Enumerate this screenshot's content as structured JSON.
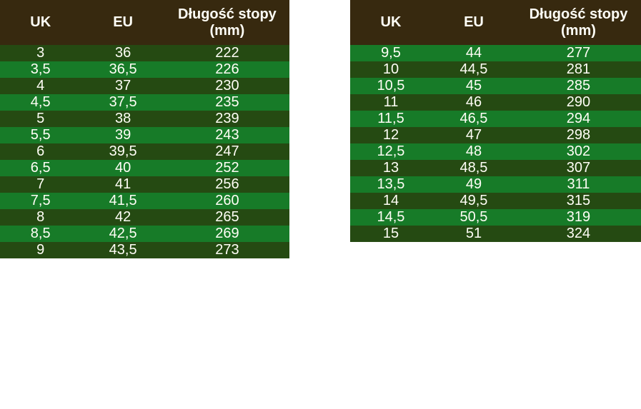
{
  "header": {
    "uk": "UK",
    "eu": "EU",
    "length_line1": "Długość stopy",
    "length_line2": "(mm)"
  },
  "colors": {
    "header_brown": "#37290f",
    "row_dark_green": "#254a12",
    "row_light_green": "#177b28",
    "text": "#fffef6"
  },
  "tables": [
    {
      "start_shade": "dark",
      "rows": [
        [
          "3",
          "36",
          "222"
        ],
        [
          "3,5",
          "36,5",
          "226"
        ],
        [
          "4",
          "37",
          "230"
        ],
        [
          "4,5",
          "37,5",
          "235"
        ],
        [
          "5",
          "38",
          "239"
        ],
        [
          "5,5",
          "39",
          "243"
        ],
        [
          "6",
          "39,5",
          "247"
        ],
        [
          "6,5",
          "40",
          "252"
        ],
        [
          "7",
          "41",
          "256"
        ],
        [
          "7,5",
          "41,5",
          "260"
        ],
        [
          "8",
          "42",
          "265"
        ],
        [
          "8,5",
          "42,5",
          "269"
        ],
        [
          "9",
          "43,5",
          "273"
        ]
      ]
    },
    {
      "start_shade": "light",
      "rows": [
        [
          "9,5",
          "44",
          "277"
        ],
        [
          "10",
          "44,5",
          "281"
        ],
        [
          "10,5",
          "45",
          "285"
        ],
        [
          "11",
          "46",
          "290"
        ],
        [
          "11,5",
          "46,5",
          "294"
        ],
        [
          "12",
          "47",
          "298"
        ],
        [
          "12,5",
          "48",
          "302"
        ],
        [
          "13",
          "48,5",
          "307"
        ],
        [
          "13,5",
          "49",
          "311"
        ],
        [
          "14",
          "49,5",
          "315"
        ],
        [
          "14,5",
          "50,5",
          "319"
        ],
        [
          "15",
          "51",
          "324"
        ]
      ]
    }
  ],
  "chart_data": [
    {
      "type": "table",
      "title": "Shoe size conversion (UK / EU / foot length mm) — part 1",
      "columns": [
        "UK",
        "EU",
        "Długość stopy (mm)"
      ],
      "rows": [
        [
          3,
          36,
          222
        ],
        [
          3.5,
          36.5,
          226
        ],
        [
          4,
          37,
          230
        ],
        [
          4.5,
          37.5,
          235
        ],
        [
          5,
          38,
          239
        ],
        [
          5.5,
          39,
          243
        ],
        [
          6,
          39.5,
          247
        ],
        [
          6.5,
          40,
          252
        ],
        [
          7,
          41,
          256
        ],
        [
          7.5,
          41.5,
          260
        ],
        [
          8,
          42,
          265
        ],
        [
          8.5,
          42.5,
          269
        ],
        [
          9,
          43.5,
          273
        ]
      ]
    },
    {
      "type": "table",
      "title": "Shoe size conversion (UK / EU / foot length mm) — part 2",
      "columns": [
        "UK",
        "EU",
        "Długość stopy (mm)"
      ],
      "rows": [
        [
          9.5,
          44,
          277
        ],
        [
          10,
          44.5,
          281
        ],
        [
          10.5,
          45,
          285
        ],
        [
          11,
          46,
          290
        ],
        [
          11.5,
          46.5,
          294
        ],
        [
          12,
          47,
          298
        ],
        [
          12.5,
          48,
          302
        ],
        [
          13,
          48.5,
          307
        ],
        [
          13.5,
          49,
          311
        ],
        [
          14,
          49.5,
          315
        ],
        [
          14.5,
          50.5,
          319
        ],
        [
          15,
          51,
          324
        ]
      ]
    }
  ]
}
